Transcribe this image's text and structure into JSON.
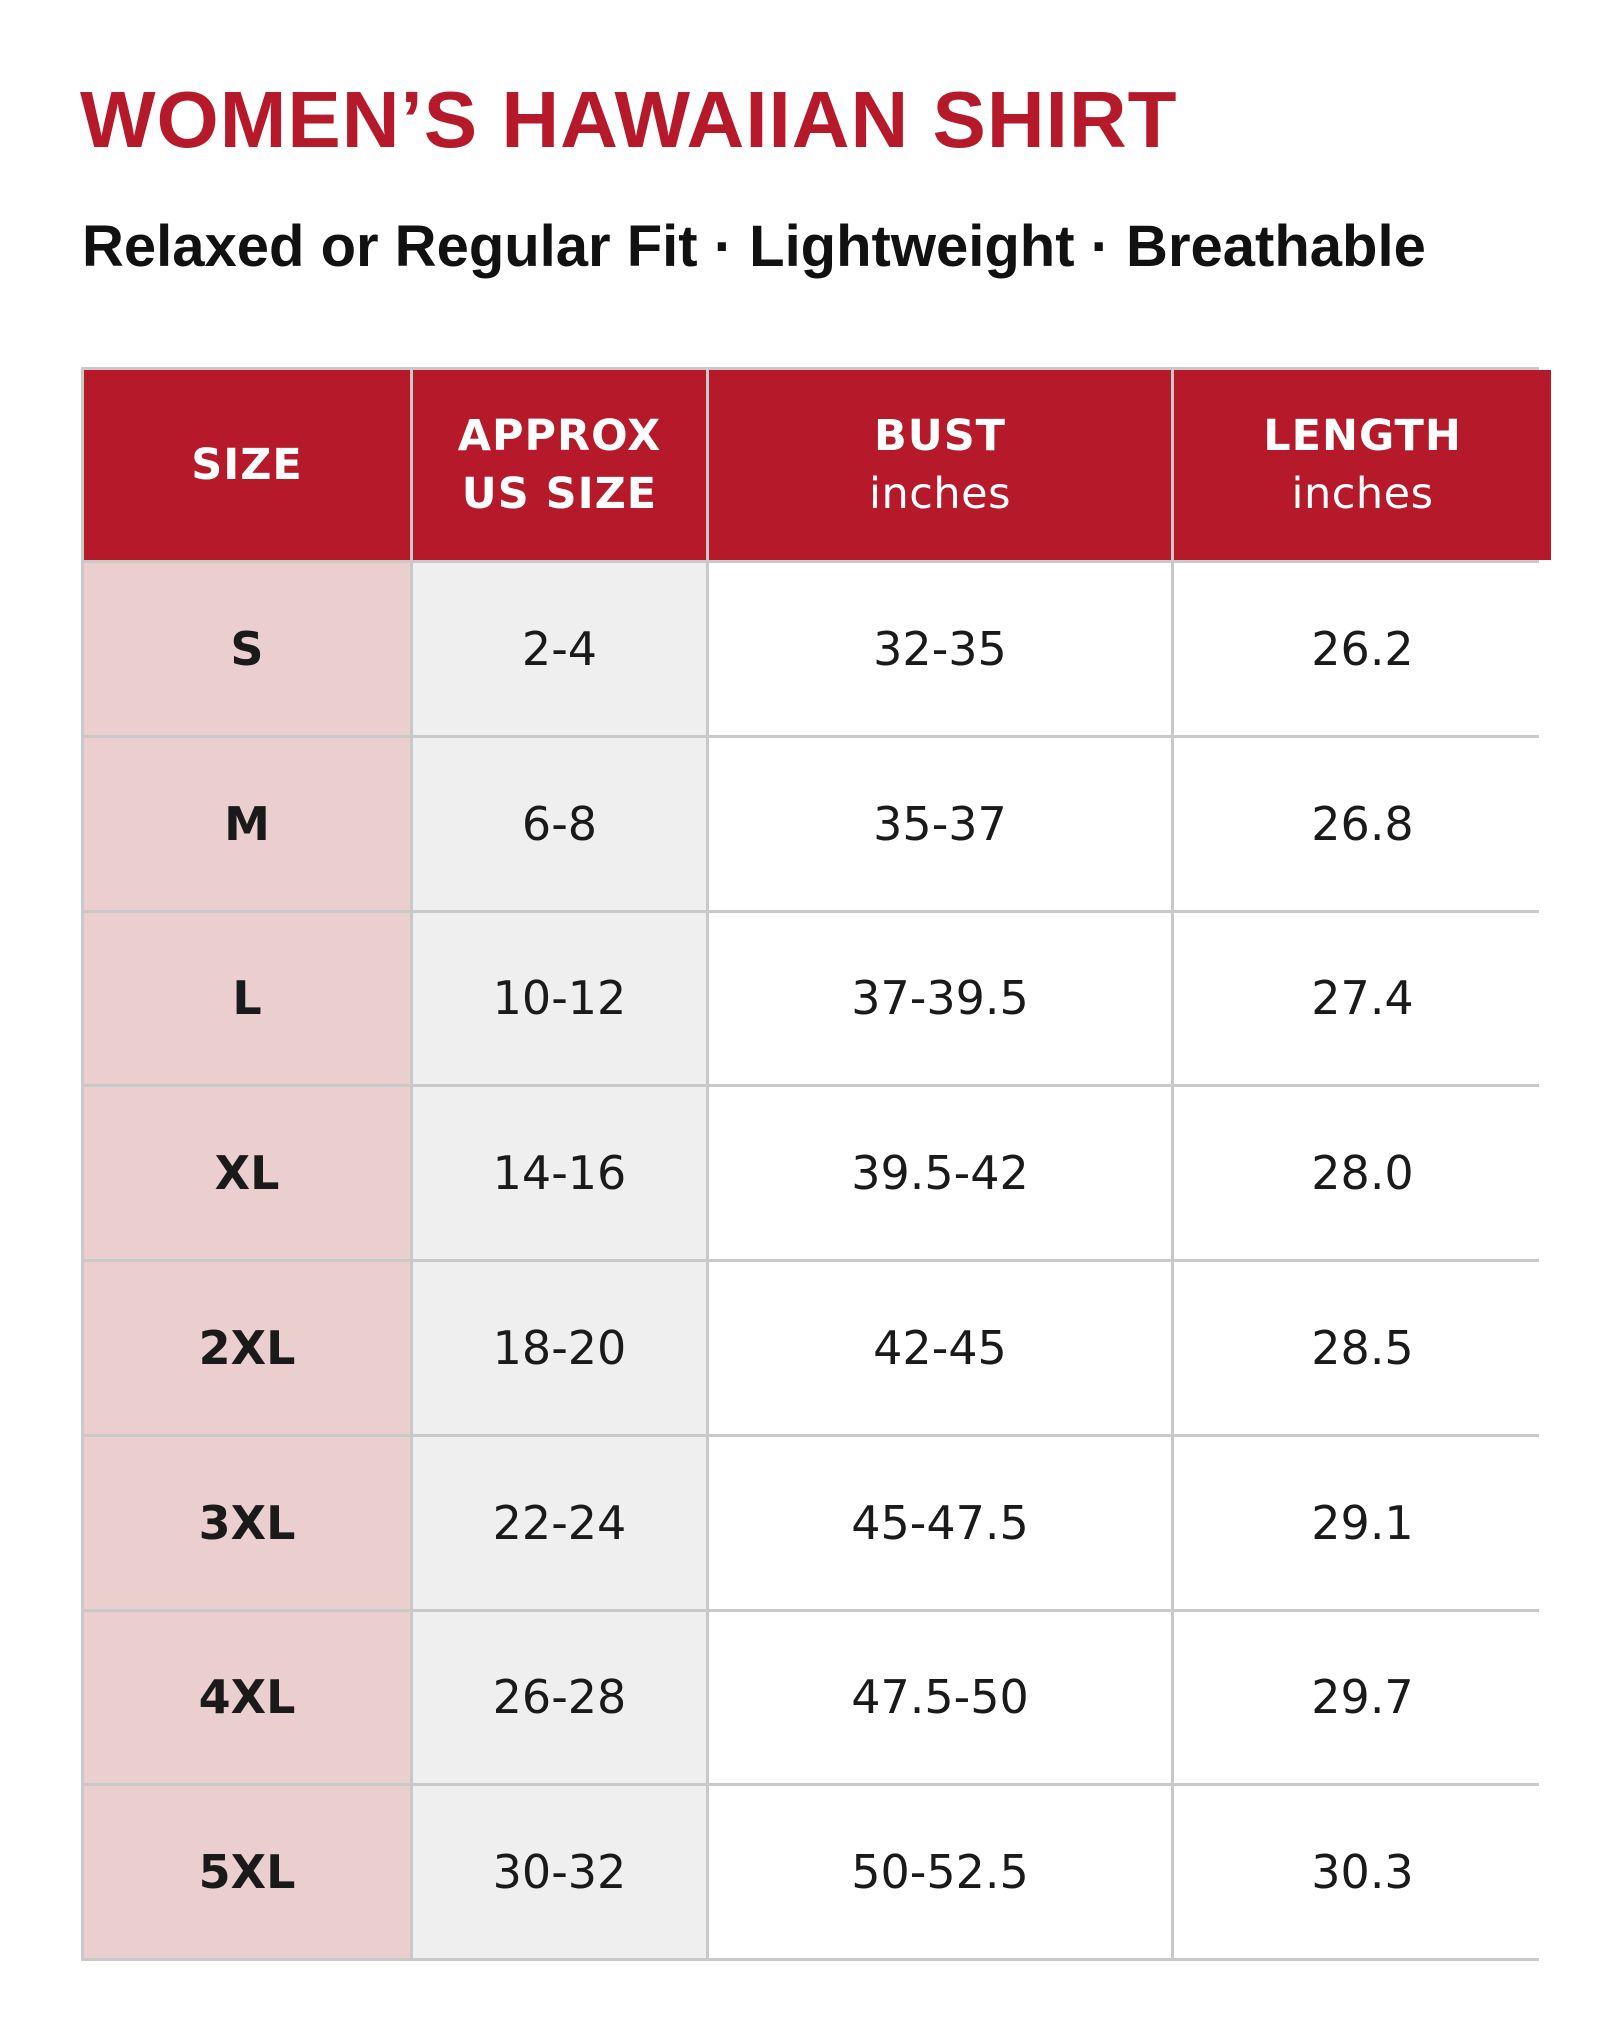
{
  "header": {
    "title": "WOMEN’S HAWAIIAN SHIRT",
    "subtitle": "Relaxed or Regular Fit · Lightweight · Breathable"
  },
  "table": {
    "columns": [
      {
        "lines": [
          "SIZE"
        ]
      },
      {
        "lines": [
          "APPROX",
          "US SIZE"
        ]
      },
      {
        "lines": [
          "BUST"
        ],
        "unit": "inches"
      },
      {
        "lines": [
          "LENGTH"
        ],
        "unit": "inches"
      }
    ],
    "rows": [
      [
        "S",
        "2-4",
        "32-35",
        "26.2"
      ],
      [
        "M",
        "6-8",
        "35-37",
        "26.8"
      ],
      [
        "L",
        "10-12",
        "37-39.5",
        "27.4"
      ],
      [
        "XL",
        "14-16",
        "39.5-42",
        "28.0"
      ],
      [
        "2XL",
        "18-20",
        "42-45",
        "28.5"
      ],
      [
        "3XL",
        "22-24",
        "45-47.5",
        "29.1"
      ],
      [
        "4XL",
        "26-28",
        "47.5-50",
        "29.7"
      ],
      [
        "5XL",
        "30-32",
        "50-52.5",
        "30.3"
      ]
    ]
  }
}
